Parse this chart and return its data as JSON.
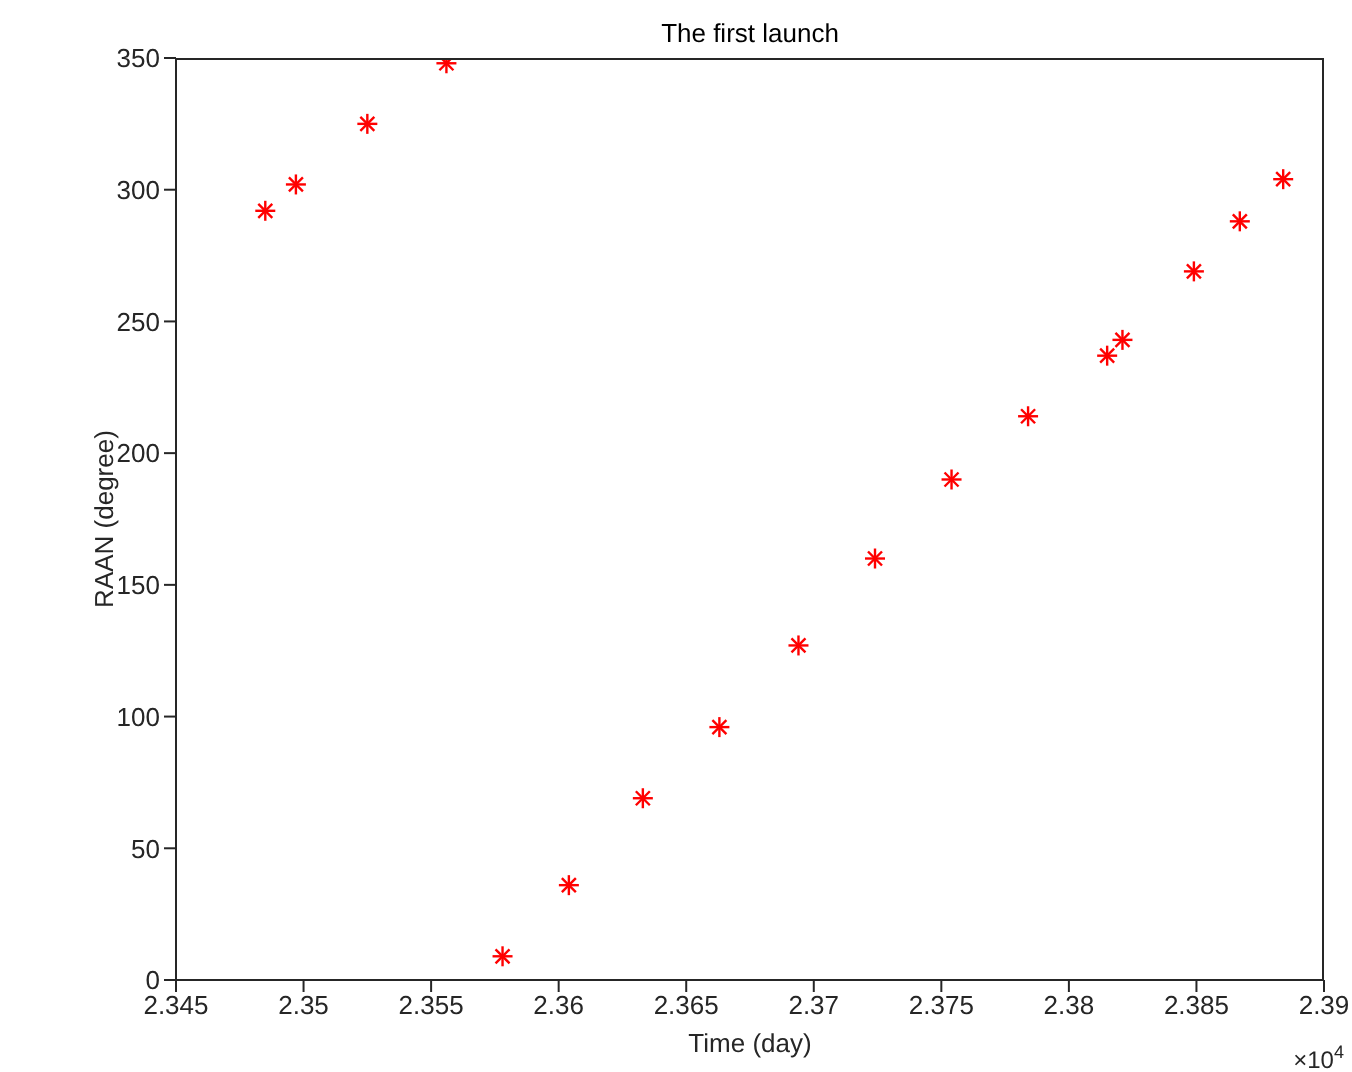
{
  "chart_data": {
    "type": "scatter",
    "title": "The first launch",
    "xlabel": "Time (day)",
    "ylabel": "RAAN (degree)",
    "x": [
      2.3485,
      2.3497,
      2.3525,
      2.3556,
      2.3578,
      2.3604,
      2.3633,
      2.3663,
      2.3694,
      2.3724,
      2.3754,
      2.3784,
      2.3815,
      2.3821,
      2.3849,
      2.3867,
      2.3884
    ],
    "series": [
      {
        "color": "#ff0000",
        "values": [
          292,
          302,
          325,
          348,
          9,
          36,
          69,
          96,
          127,
          160,
          190,
          214,
          237,
          243,
          269,
          288,
          304
        ]
      }
    ],
    "xlim": [
      2.345,
      2.39
    ],
    "xticks": [
      2.345,
      2.35,
      2.355,
      2.36,
      2.365,
      2.37,
      2.375,
      2.38,
      2.385,
      2.39
    ],
    "ylim": [
      0,
      350
    ],
    "yticks": [
      0,
      50,
      100,
      150,
      200,
      250,
      300,
      350
    ],
    "marker": "cross",
    "grid": false,
    "legend": false,
    "annotations": [
      "×10$^{4}$"
    ]
  }
}
